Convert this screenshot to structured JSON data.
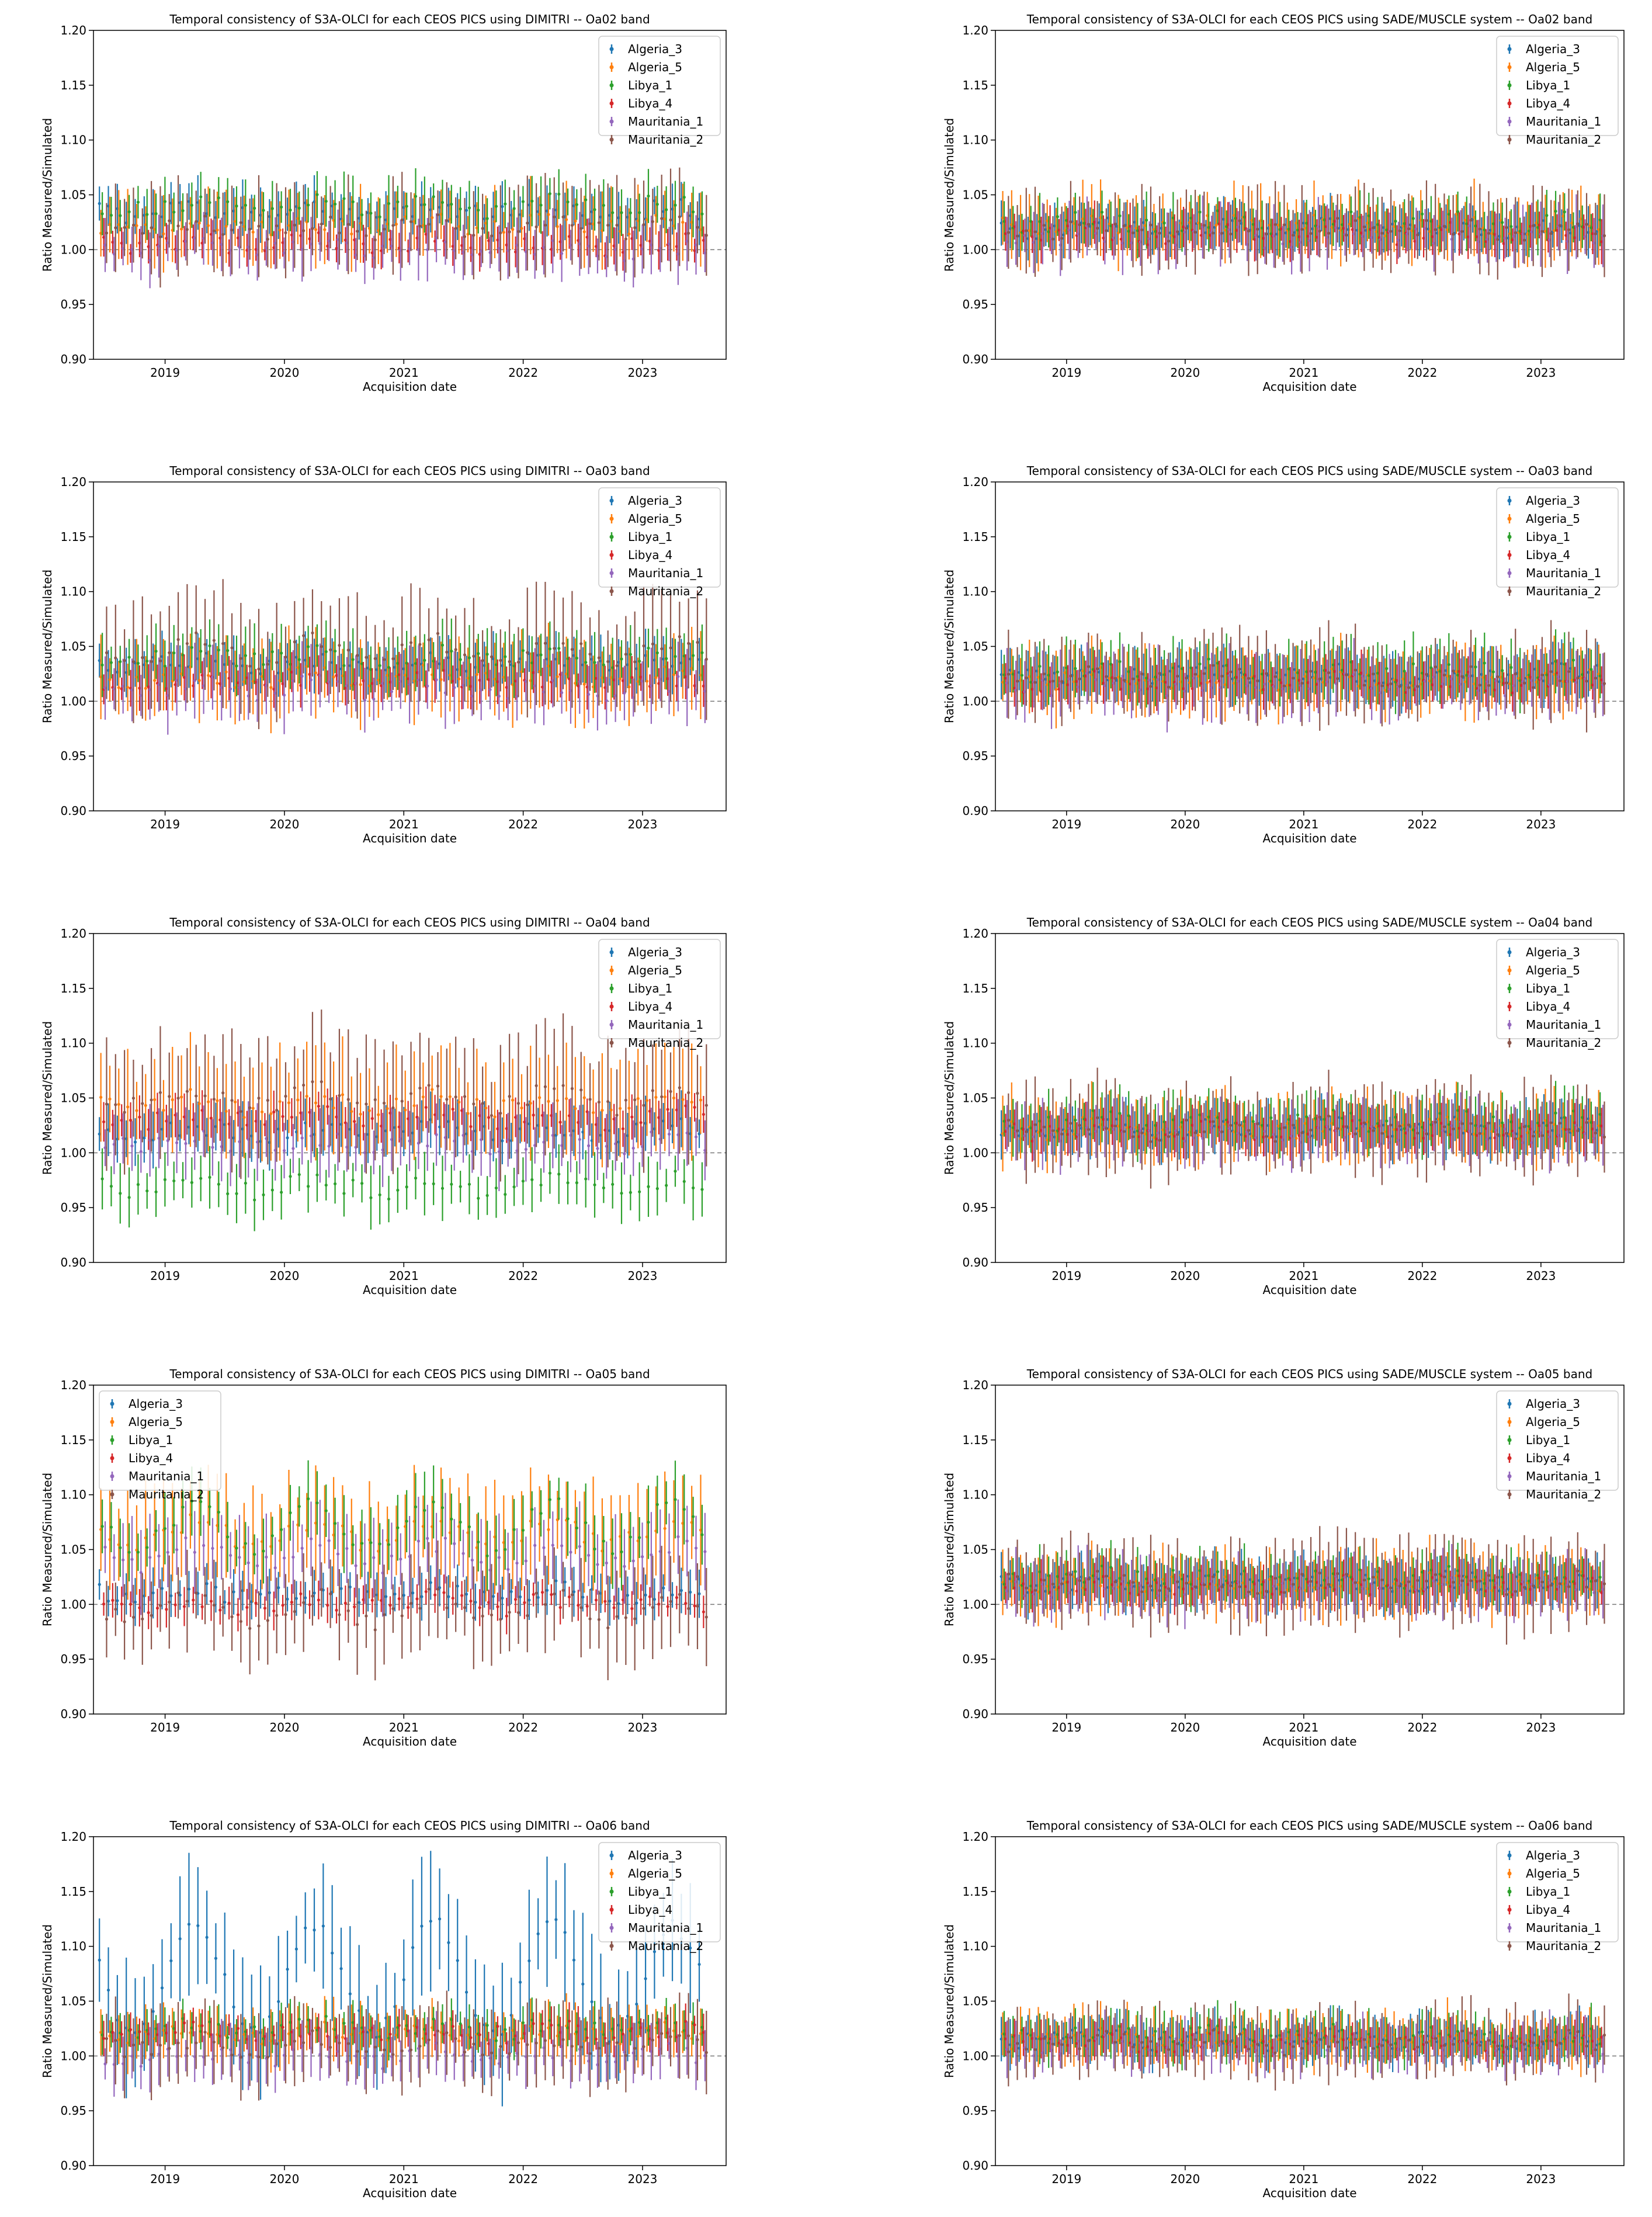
{
  "figure": {
    "series_colors": {
      "Algeria_3": "#1f77b4",
      "Algeria_5": "#ff7f0e",
      "Libya_1": "#2ca02c",
      "Libya_4": "#d62728",
      "Mauritania_1": "#9467bd",
      "Mauritania_2": "#8c564b"
    }
  },
  "chart_data": [
    {
      "type": "scatter",
      "title": "Temporal consistency of S3A-OLCI for each CEOS PICS using DIMITRI -- Oa02 band",
      "xlabel": "Acquisition date",
      "ylabel": "Ratio Measured/Simulated",
      "ylim": [
        0.9,
        1.2
      ],
      "xlim": [
        2018.4,
        2023.7
      ],
      "yticks": [
        "0.90",
        "0.95",
        "1.00",
        "1.05",
        "1.10",
        "1.15",
        "1.20"
      ],
      "xticks": [
        "2019",
        "2020",
        "2021",
        "2022",
        "2023"
      ],
      "reference_line": 1.0,
      "legend_position": "top-right",
      "legend": [
        "Algeria_3",
        "Algeria_5",
        "Libya_1",
        "Libya_4",
        "Mauritania_1",
        "Mauritania_2"
      ],
      "series": [
        {
          "name": "Algeria_3",
          "mean": 1.035,
          "amp": 0.004,
          "err": 0.022
        },
        {
          "name": "Algeria_5",
          "mean": 1.022,
          "amp": 0.004,
          "err": 0.03
        },
        {
          "name": "Libya_1",
          "mean": 1.04,
          "amp": 0.004,
          "err": 0.022
        },
        {
          "name": "Libya_4",
          "mean": 1.005,
          "amp": 0.003,
          "err": 0.015
        },
        {
          "name": "Mauritania_1",
          "mean": 1.0,
          "amp": 0.004,
          "err": 0.025
        },
        {
          "name": "Mauritania_2",
          "mean": 1.02,
          "amp": 0.004,
          "err": 0.04
        }
      ]
    },
    {
      "type": "scatter",
      "title": "Temporal consistency of S3A-OLCI for each CEOS PICS using SADE/MUSCLE system -- Oa02 band",
      "xlabel": "Acquisition date",
      "ylabel": "Ratio Measured/Simulated",
      "ylim": [
        0.9,
        1.2
      ],
      "xlim": [
        2018.4,
        2023.7
      ],
      "yticks": [
        "0.90",
        "0.95",
        "1.00",
        "1.05",
        "1.10",
        "1.15",
        "1.20"
      ],
      "xticks": [
        "2019",
        "2020",
        "2021",
        "2022",
        "2023"
      ],
      "reference_line": 1.0,
      "legend_position": "top-right",
      "legend": [
        "Algeria_3",
        "Algeria_5",
        "Libya_1",
        "Libya_4",
        "Mauritania_1",
        "Mauritania_2"
      ],
      "series": [
        {
          "name": "Algeria_3",
          "mean": 1.02,
          "amp": 0.003,
          "err": 0.02
        },
        {
          "name": "Algeria_5",
          "mean": 1.022,
          "amp": 0.003,
          "err": 0.03
        },
        {
          "name": "Libya_1",
          "mean": 1.025,
          "amp": 0.003,
          "err": 0.022
        },
        {
          "name": "Libya_4",
          "mean": 1.015,
          "amp": 0.003,
          "err": 0.018
        },
        {
          "name": "Mauritania_1",
          "mean": 1.012,
          "amp": 0.003,
          "err": 0.025
        },
        {
          "name": "Mauritania_2",
          "mean": 1.018,
          "amp": 0.003,
          "err": 0.035
        }
      ]
    },
    {
      "type": "scatter",
      "title": "Temporal consistency of S3A-OLCI for each CEOS PICS using DIMITRI -- Oa03 band",
      "xlabel": "Acquisition date",
      "ylabel": "Ratio Measured/Simulated",
      "ylim": [
        0.9,
        1.2
      ],
      "xlim": [
        2018.4,
        2023.7
      ],
      "yticks": [
        "0.90",
        "0.95",
        "1.00",
        "1.05",
        "1.10",
        "1.15",
        "1.20"
      ],
      "xticks": [
        "2019",
        "2020",
        "2021",
        "2022",
        "2023"
      ],
      "reference_line": 1.0,
      "legend_position": "top-right",
      "legend": [
        "Algeria_3",
        "Algeria_5",
        "Libya_1",
        "Libya_4",
        "Mauritania_1",
        "Mauritania_2"
      ],
      "series": [
        {
          "name": "Algeria_3",
          "mean": 1.035,
          "amp": 0.004,
          "err": 0.022
        },
        {
          "name": "Algeria_5",
          "mean": 1.022,
          "amp": 0.004,
          "err": 0.035
        },
        {
          "name": "Libya_1",
          "mean": 1.04,
          "amp": 0.004,
          "err": 0.025
        },
        {
          "name": "Libya_4",
          "mean": 1.018,
          "amp": 0.003,
          "err": 0.018
        },
        {
          "name": "Mauritania_1",
          "mean": 1.012,
          "amp": 0.004,
          "err": 0.03
        },
        {
          "name": "Mauritania_2",
          "mean": 1.045,
          "amp": 0.01,
          "err": 0.05
        }
      ]
    },
    {
      "type": "scatter",
      "title": "Temporal consistency of S3A-OLCI for each CEOS PICS using SADE/MUSCLE system -- Oa03 band",
      "xlabel": "Acquisition date",
      "ylabel": "Ratio Measured/Simulated",
      "ylim": [
        0.9,
        1.2
      ],
      "xlim": [
        2018.4,
        2023.7
      ],
      "yticks": [
        "0.90",
        "0.95",
        "1.00",
        "1.05",
        "1.10",
        "1.15",
        "1.20"
      ],
      "xticks": [
        "2019",
        "2020",
        "2021",
        "2022",
        "2023"
      ],
      "reference_line": 1.0,
      "legend_position": "top-right",
      "legend": [
        "Algeria_3",
        "Algeria_5",
        "Libya_1",
        "Libya_4",
        "Mauritania_1",
        "Mauritania_2"
      ],
      "series": [
        {
          "name": "Algeria_3",
          "mean": 1.025,
          "amp": 0.003,
          "err": 0.022
        },
        {
          "name": "Algeria_5",
          "mean": 1.02,
          "amp": 0.003,
          "err": 0.03
        },
        {
          "name": "Libya_1",
          "mean": 1.028,
          "amp": 0.003,
          "err": 0.025
        },
        {
          "name": "Libya_4",
          "mean": 1.018,
          "amp": 0.003,
          "err": 0.018
        },
        {
          "name": "Mauritania_1",
          "mean": 1.015,
          "amp": 0.003,
          "err": 0.028
        },
        {
          "name": "Mauritania_2",
          "mean": 1.022,
          "amp": 0.004,
          "err": 0.04
        }
      ]
    },
    {
      "type": "scatter",
      "title": "Temporal consistency of S3A-OLCI for each CEOS PICS using DIMITRI -- Oa04 band",
      "xlabel": "Acquisition date",
      "ylabel": "Ratio Measured/Simulated",
      "ylim": [
        0.9,
        1.2
      ],
      "xlim": [
        2018.4,
        2023.7
      ],
      "yticks": [
        "0.90",
        "0.95",
        "1.00",
        "1.05",
        "1.10",
        "1.15",
        "1.20"
      ],
      "xticks": [
        "2019",
        "2020",
        "2021",
        "2022",
        "2023"
      ],
      "reference_line": 1.0,
      "legend_position": "top-right",
      "legend": [
        "Algeria_3",
        "Algeria_5",
        "Libya_1",
        "Libya_4",
        "Mauritania_1",
        "Mauritania_2"
      ],
      "series": [
        {
          "name": "Algeria_3",
          "mean": 1.02,
          "amp": 0.004,
          "err": 0.022
        },
        {
          "name": "Algeria_5",
          "mean": 1.045,
          "amp": 0.006,
          "err": 0.045
        },
        {
          "name": "Libya_1",
          "mean": 0.97,
          "amp": 0.006,
          "err": 0.025
        },
        {
          "name": "Libya_4",
          "mean": 1.032,
          "amp": 0.004,
          "err": 0.018
        },
        {
          "name": "Mauritania_1",
          "mean": 1.01,
          "amp": 0.004,
          "err": 0.03
        },
        {
          "name": "Mauritania_2",
          "mean": 1.05,
          "amp": 0.008,
          "err": 0.055
        }
      ]
    },
    {
      "type": "scatter",
      "title": "Temporal consistency of S3A-OLCI for each CEOS PICS using SADE/MUSCLE system -- Oa04 band",
      "xlabel": "Acquisition date",
      "ylabel": "Ratio Measured/Simulated",
      "ylim": [
        0.9,
        1.2
      ],
      "xlim": [
        2018.4,
        2023.7
      ],
      "yticks": [
        "0.90",
        "0.95",
        "1.00",
        "1.05",
        "1.10",
        "1.15",
        "1.20"
      ],
      "xticks": [
        "2019",
        "2020",
        "2021",
        "2022",
        "2023"
      ],
      "reference_line": 1.0,
      "legend_position": "top-right",
      "legend": [
        "Algeria_3",
        "Algeria_5",
        "Libya_1",
        "Libya_4",
        "Mauritania_1",
        "Mauritania_2"
      ],
      "series": [
        {
          "name": "Algeria_3",
          "mean": 1.022,
          "amp": 0.003,
          "err": 0.022
        },
        {
          "name": "Algeria_5",
          "mean": 1.022,
          "amp": 0.003,
          "err": 0.03
        },
        {
          "name": "Libya_1",
          "mean": 1.028,
          "amp": 0.003,
          "err": 0.025
        },
        {
          "name": "Libya_4",
          "mean": 1.02,
          "amp": 0.003,
          "err": 0.018
        },
        {
          "name": "Mauritania_1",
          "mean": 1.018,
          "amp": 0.003,
          "err": 0.028
        },
        {
          "name": "Mauritania_2",
          "mean": 1.022,
          "amp": 0.004,
          "err": 0.04
        }
      ]
    },
    {
      "type": "scatter",
      "title": "Temporal consistency of S3A-OLCI for each CEOS PICS using DIMITRI -- Oa05 band",
      "xlabel": "Acquisition date",
      "ylabel": "Ratio Measured/Simulated",
      "ylim": [
        0.9,
        1.2
      ],
      "xlim": [
        2018.4,
        2023.7
      ],
      "yticks": [
        "0.90",
        "0.95",
        "1.00",
        "1.05",
        "1.10",
        "1.15",
        "1.20"
      ],
      "xticks": [
        "2019",
        "2020",
        "2021",
        "2022",
        "2023"
      ],
      "reference_line": 1.0,
      "legend_position": "top-left",
      "legend": [
        "Algeria_3",
        "Algeria_5",
        "Libya_1",
        "Libya_4",
        "Mauritania_1",
        "Mauritania_2"
      ],
      "series": [
        {
          "name": "Algeria_3",
          "mean": 1.01,
          "amp": 0.004,
          "err": 0.02
        },
        {
          "name": "Algeria_5",
          "mean": 1.065,
          "amp": 0.01,
          "err": 0.045
        },
        {
          "name": "Libya_1",
          "mean": 1.07,
          "amp": 0.02,
          "err": 0.03
        },
        {
          "name": "Libya_4",
          "mean": 1.0,
          "amp": 0.004,
          "err": 0.015
        },
        {
          "name": "Mauritania_1",
          "mean": 1.045,
          "amp": 0.01,
          "err": 0.035
        },
        {
          "name": "Mauritania_2",
          "mean": 0.995,
          "amp": 0.012,
          "err": 0.04
        }
      ]
    },
    {
      "type": "scatter",
      "title": "Temporal consistency of S3A-OLCI for each CEOS PICS using SADE/MUSCLE system -- Oa05 band",
      "xlabel": "Acquisition date",
      "ylabel": "Ratio Measured/Simulated",
      "ylim": [
        0.9,
        1.2
      ],
      "xlim": [
        2018.4,
        2023.7
      ],
      "yticks": [
        "0.90",
        "0.95",
        "1.00",
        "1.05",
        "1.10",
        "1.15",
        "1.20"
      ],
      "xticks": [
        "2019",
        "2020",
        "2021",
        "2022",
        "2023"
      ],
      "reference_line": 1.0,
      "legend_position": "top-right",
      "legend": [
        "Algeria_3",
        "Algeria_5",
        "Libya_1",
        "Libya_4",
        "Mauritania_1",
        "Mauritania_2"
      ],
      "series": [
        {
          "name": "Algeria_3",
          "mean": 1.02,
          "amp": 0.003,
          "err": 0.022
        },
        {
          "name": "Algeria_5",
          "mean": 1.02,
          "amp": 0.003,
          "err": 0.03
        },
        {
          "name": "Libya_1",
          "mean": 1.025,
          "amp": 0.003,
          "err": 0.022
        },
        {
          "name": "Libya_4",
          "mean": 1.018,
          "amp": 0.003,
          "err": 0.018
        },
        {
          "name": "Mauritania_1",
          "mean": 1.015,
          "amp": 0.003,
          "err": 0.028
        },
        {
          "name": "Mauritania_2",
          "mean": 1.02,
          "amp": 0.004,
          "err": 0.04
        }
      ]
    },
    {
      "type": "scatter",
      "title": "Temporal consistency of S3A-OLCI for each CEOS PICS using DIMITRI -- Oa06 band",
      "xlabel": "Acquisition date",
      "ylabel": "Ratio Measured/Simulated",
      "ylim": [
        0.9,
        1.2
      ],
      "xlim": [
        2018.4,
        2023.7
      ],
      "yticks": [
        "0.90",
        "0.95",
        "1.00",
        "1.05",
        "1.10",
        "1.15",
        "1.20"
      ],
      "xticks": [
        "2019",
        "2020",
        "2021",
        "2022",
        "2023"
      ],
      "reference_line": 1.0,
      "legend_position": "top-right",
      "legend": [
        "Algeria_3",
        "Algeria_5",
        "Libya_1",
        "Libya_4",
        "Mauritania_1",
        "Mauritania_2"
      ],
      "series": [
        {
          "name": "Algeria_3",
          "mean": 1.07,
          "amp": 0.05,
          "err": 0.055
        },
        {
          "name": "Algeria_5",
          "mean": 1.02,
          "amp": 0.004,
          "err": 0.025
        },
        {
          "name": "Libya_1",
          "mean": 1.025,
          "amp": 0.004,
          "err": 0.018
        },
        {
          "name": "Libya_4",
          "mean": 1.022,
          "amp": 0.003,
          "err": 0.015
        },
        {
          "name": "Mauritania_1",
          "mean": 1.0,
          "amp": 0.005,
          "err": 0.025
        },
        {
          "name": "Mauritania_2",
          "mean": 1.01,
          "amp": 0.005,
          "err": 0.035
        }
      ]
    },
    {
      "type": "scatter",
      "title": "Temporal consistency of S3A-OLCI for each CEOS PICS using SADE/MUSCLE system -- Oa06 band",
      "xlabel": "Acquisition date",
      "ylabel": "Ratio Measured/Simulated",
      "ylim": [
        0.9,
        1.2
      ],
      "xlim": [
        2018.4,
        2023.7
      ],
      "yticks": [
        "0.90",
        "0.95",
        "1.00",
        "1.05",
        "1.10",
        "1.15",
        "1.20"
      ],
      "xticks": [
        "2019",
        "2020",
        "2021",
        "2022",
        "2023"
      ],
      "reference_line": 1.0,
      "legend_position": "top-right",
      "legend": [
        "Algeria_3",
        "Algeria_5",
        "Libya_1",
        "Libya_4",
        "Mauritania_1",
        "Mauritania_2"
      ],
      "series": [
        {
          "name": "Algeria_3",
          "mean": 1.015,
          "amp": 0.003,
          "err": 0.02
        },
        {
          "name": "Algeria_5",
          "mean": 1.015,
          "amp": 0.003,
          "err": 0.025
        },
        {
          "name": "Libya_1",
          "mean": 1.018,
          "amp": 0.003,
          "err": 0.02
        },
        {
          "name": "Libya_4",
          "mean": 1.012,
          "amp": 0.003,
          "err": 0.015
        },
        {
          "name": "Mauritania_1",
          "mean": 1.01,
          "amp": 0.003,
          "err": 0.022
        },
        {
          "name": "Mauritania_2",
          "mean": 1.012,
          "amp": 0.004,
          "err": 0.03
        }
      ]
    }
  ]
}
